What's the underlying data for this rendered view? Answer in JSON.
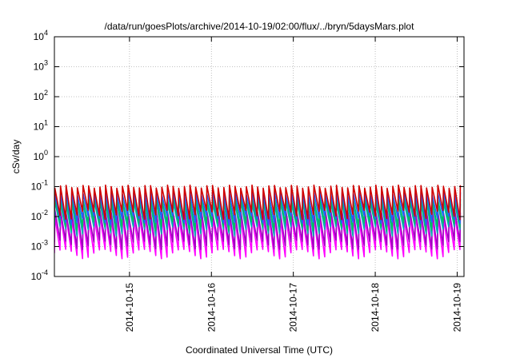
{
  "chart_data": {
    "type": "line",
    "title": "/data/run/goesPlots/archive/2014-10-19/02:00/flux/../bryn/5daysMars.plot",
    "xlabel": "Coordinated Universal Time (UTC)",
    "ylabel": "cSv/day",
    "yscale": "log",
    "ylim": [
      0.0001,
      10000
    ],
    "y_ticks": [
      {
        "value": 0.0001,
        "base": "10",
        "exp": "-4"
      },
      {
        "value": 0.001,
        "base": "10",
        "exp": "-3"
      },
      {
        "value": 0.01,
        "base": "10",
        "exp": "-2"
      },
      {
        "value": 0.1,
        "base": "10",
        "exp": "-1"
      },
      {
        "value": 1,
        "base": "10",
        "exp": "0"
      },
      {
        "value": 10,
        "base": "10",
        "exp": "1"
      },
      {
        "value": 100,
        "base": "10",
        "exp": "2"
      },
      {
        "value": 1000,
        "base": "10",
        "exp": "3"
      },
      {
        "value": 10000,
        "base": "10",
        "exp": "4"
      }
    ],
    "xlim": [
      "2014-10-14 02:00",
      "2014-10-19 02:00"
    ],
    "x_ticks": [
      "2014-10-15",
      "2014-10-16",
      "2014-10-17",
      "2014-10-18",
      "2014-10-19"
    ],
    "grid": true,
    "legend": "none",
    "sawtooth": {
      "period_hours": 1.65,
      "n_cycles": 73
    },
    "series": [
      {
        "color": "#ff00ff",
        "peak": 0.01,
        "trough": 0.0006
      },
      {
        "color": "#a000c0",
        "peak": 0.015,
        "trough": 0.0012
      },
      {
        "color": "#00b0b0",
        "peak": 0.03,
        "trough": 0.0035
      },
      {
        "color": "#00c060",
        "peak": 0.04,
        "trough": 0.005
      },
      {
        "color": "#2060ff",
        "peak": 0.06,
        "trough": 0.008
      },
      {
        "color": "#d00000",
        "peak": 0.1,
        "trough": 0.012
      }
    ]
  }
}
